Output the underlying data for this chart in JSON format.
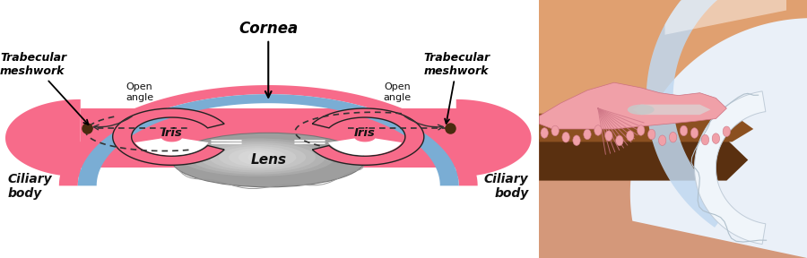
{
  "bg": "#ffffff",
  "pink": "#F76B8A",
  "blue": "#7AADD4",
  "lens_gray": "#9E9E9E",
  "lens_light": "#C8C8C8",
  "dark_brown": "#4A2B0F",
  "white": "#ffffff",
  "skin": "#E8A882",
  "skin_dark": "#C8846A",
  "iris_brown": "#7B4A28",
  "cornea_glass": "#C8DCF0",
  "sclera": "#E8F0F8",
  "pink_iris_photo": "#E89090",
  "label_cornea": "Cornea",
  "label_trabecular": "Trabecular\nmeshwork",
  "label_open_angle": "Open\nangle",
  "label_iris": "Iris",
  "label_lens": "Lens",
  "label_ciliary": "Ciliary\nbody"
}
